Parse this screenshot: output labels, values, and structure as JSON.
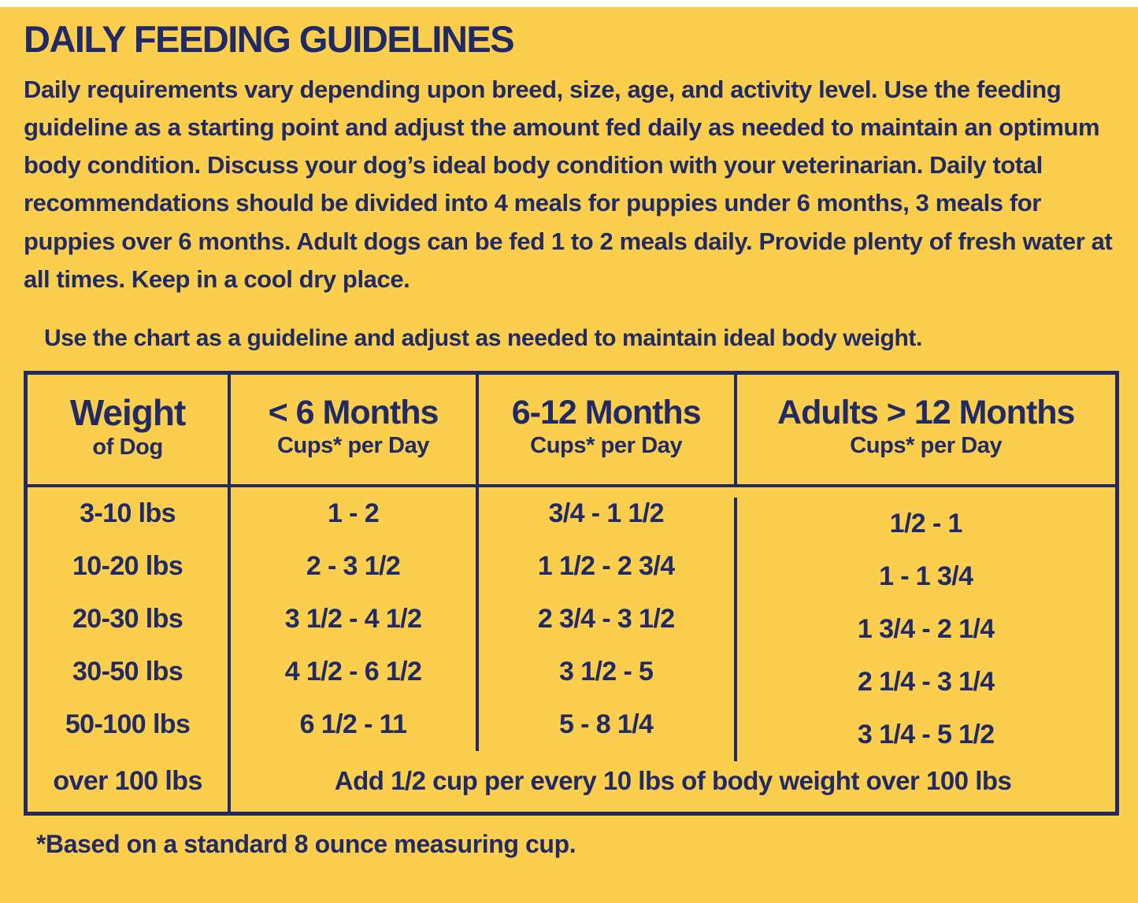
{
  "colors": {
    "background": "#FCCE4D",
    "text": "#1F2A66",
    "border": "#1F2A66",
    "top_strip": "#FFFFFF"
  },
  "header": {
    "title": "DAILY FEEDING GUIDELINES",
    "intro": "Daily requirements vary depending upon breed, size, age, and activity level. Use the feeding guideline as a starting point and adjust the amount fed daily as needed to maintain an optimum body condition. Discuss your dog’s ideal body condition with your veterinarian. Daily total recommendations should be divided into 4 meals for puppies under 6 months, 3 meals for puppies over 6 months. Adult dogs can be fed 1 to 2 meals daily. Provide plenty of fresh water at all times. Keep in a cool dry place."
  },
  "caption": "Use the chart as a guideline and adjust as needed to maintain ideal body weight.",
  "table": {
    "columns": [
      {
        "title": "Weight",
        "subtitle": "of Dog"
      },
      {
        "title": "< 6 Months",
        "subtitle": "Cups* per Day"
      },
      {
        "title": "6-12 Months",
        "subtitle": "Cups* per Day"
      },
      {
        "title": "Adults > 12 Months",
        "subtitle": "Cups* per Day"
      }
    ],
    "rows": [
      {
        "weight": "3-10 lbs",
        "under6": "1 - 2",
        "m6to12": "3/4 - 1 1/2",
        "adults": "1/2 - 1"
      },
      {
        "weight": "10-20 lbs",
        "under6": "2 - 3 1/2",
        "m6to12": "1 1/2 - 2 3/4",
        "adults": "1 - 1 3/4"
      },
      {
        "weight": "20-30 lbs",
        "under6": "3 1/2 - 4 1/2",
        "m6to12": "2 3/4 - 3 1/2",
        "adults": "1 3/4 - 2 1/4"
      },
      {
        "weight": "30-50 lbs",
        "under6": "4 1/2 - 6 1/2",
        "m6to12": "3 1/2 - 5",
        "adults": "2 1/4 - 3 1/4"
      },
      {
        "weight": "50-100 lbs",
        "under6": "6 1/2 - 11",
        "m6to12": "5 - 8 1/4",
        "adults": "3 1/4 - 5 1/2"
      }
    ],
    "over_row": {
      "weight": "over 100 lbs",
      "note": "Add 1/2 cup per every 10 lbs of body weight over 100 lbs"
    }
  },
  "footnote": "*Based on a standard 8 ounce measuring cup."
}
